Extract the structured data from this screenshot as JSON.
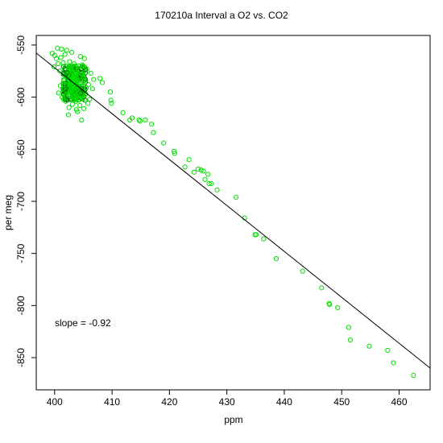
{
  "chart_data": {
    "type": "scatter",
    "title": "170210a   Interval a O2 vs. CO2",
    "xlabel": "ppm",
    "ylabel": "per meg",
    "xlim": [
      396.8,
      465.4
    ],
    "ylim": [
      -880.9,
      -540.8
    ],
    "x_ticks": [
      400,
      410,
      420,
      430,
      440,
      450,
      460
    ],
    "y_ticks": [
      -550,
      -600,
      -650,
      -700,
      -750,
      -800,
      -850
    ],
    "annotation": "slope =  -0.92",
    "grid": false,
    "legend": "none",
    "colors": {
      "points": "#00dd00",
      "dense_points": "#0a6b0a",
      "line": "#000000"
    },
    "fit_line": {
      "slope": -0.92,
      "x": [
        396.8,
        465.4
      ],
      "y": [
        -557.7,
        -860.0
      ]
    },
    "series": [
      {
        "values": [
          [
            400.5,
            -553
          ],
          [
            401.2,
            -554
          ],
          [
            402.1,
            -555
          ],
          [
            403.0,
            -557
          ],
          [
            400.0,
            -560
          ],
          [
            401.8,
            -559
          ],
          [
            404.5,
            -561
          ],
          [
            405.2,
            -563
          ],
          [
            404.8,
            -569
          ],
          [
            399.9,
            -571
          ],
          [
            400.9,
            -575
          ],
          [
            401.5,
            -567
          ],
          [
            402.6,
            -566
          ],
          [
            403.4,
            -568
          ],
          [
            404.1,
            -570
          ],
          [
            405.6,
            -573
          ],
          [
            406.3,
            -577
          ],
          [
            406.8,
            -583
          ],
          [
            405.9,
            -588
          ],
          [
            406.6,
            -592
          ],
          [
            405.4,
            -597
          ],
          [
            406.1,
            -602
          ],
          [
            405.8,
            -606
          ],
          [
            405.1,
            -611
          ],
          [
            404.4,
            -608
          ],
          [
            403.8,
            -612
          ],
          [
            403.1,
            -607
          ],
          [
            402.5,
            -610
          ],
          [
            401.9,
            -604
          ],
          [
            401.3,
            -600
          ],
          [
            400.7,
            -596
          ],
          [
            401.0,
            -589
          ],
          [
            401.6,
            -583
          ],
          [
            402.2,
            -579
          ],
          [
            402.8,
            -586
          ],
          [
            403.5,
            -591
          ],
          [
            404.2,
            -596
          ],
          [
            404.9,
            -601
          ],
          [
            403.6,
            -576
          ],
          [
            402.9,
            -572
          ],
          [
            402.3,
            -575
          ],
          [
            403.9,
            -582
          ],
          [
            404.6,
            -587
          ],
          [
            402.7,
            -594
          ],
          [
            403.3,
            -599
          ],
          [
            401.4,
            -592
          ],
          [
            402.0,
            -588
          ],
          [
            403.7,
            -604
          ],
          [
            400.3,
            -563
          ],
          [
            400.6,
            -568
          ],
          [
            399.6,
            -558
          ],
          [
            401.1,
            -562
          ],
          [
            405.0,
            -580
          ],
          [
            405.5,
            -591
          ],
          [
            404.0,
            -614
          ],
          [
            402.4,
            -617
          ],
          [
            404.7,
            -622
          ],
          [
            403.2,
            -581
          ],
          [
            402.6,
            -584
          ],
          [
            403.0,
            -589
          ],
          [
            403.8,
            -593
          ],
          [
            404.3,
            -590
          ],
          [
            403.4,
            -586
          ],
          [
            402.1,
            -597
          ],
          [
            407.9,
            -582
          ],
          [
            408.3,
            -586
          ],
          [
            409.7,
            -595
          ],
          [
            409.8,
            -603
          ],
          [
            409.9,
            -606
          ],
          [
            411.9,
            -615
          ],
          [
            413.1,
            -622
          ],
          [
            413.5,
            -620
          ],
          [
            414.7,
            -622
          ],
          [
            414.9,
            -623
          ],
          [
            415.8,
            -622
          ],
          [
            416.9,
            -626
          ],
          [
            417.2,
            -634
          ],
          [
            419.0,
            -644
          ],
          [
            420.8,
            -652
          ],
          [
            420.9,
            -654
          ],
          [
            422.7,
            -667
          ],
          [
            423.4,
            -660
          ],
          [
            424.3,
            -672
          ],
          [
            425.0,
            -669
          ],
          [
            425.5,
            -670
          ],
          [
            425.9,
            -671
          ],
          [
            426.7,
            -674
          ],
          [
            426.2,
            -679
          ],
          [
            426.9,
            -683
          ],
          [
            427.3,
            -683
          ],
          [
            428.3,
            -689
          ],
          [
            431.6,
            -696
          ],
          [
            433.1,
            -716
          ],
          [
            434.9,
            -732
          ],
          [
            435.1,
            -732
          ],
          [
            436.4,
            -736
          ],
          [
            438.6,
            -755
          ],
          [
            443.2,
            -767
          ],
          [
            446.5,
            -783
          ],
          [
            447.8,
            -798
          ],
          [
            447.9,
            -799
          ],
          [
            449.3,
            -802
          ],
          [
            451.2,
            -821
          ],
          [
            451.5,
            -833
          ],
          [
            454.8,
            -839
          ],
          [
            458.0,
            -843
          ],
          [
            459.0,
            -855
          ],
          [
            462.5,
            -867
          ]
        ]
      }
    ],
    "dense_cluster": {
      "x_range": [
        401.5,
        405.5
      ],
      "y_range": [
        -603,
        -570
      ]
    }
  }
}
